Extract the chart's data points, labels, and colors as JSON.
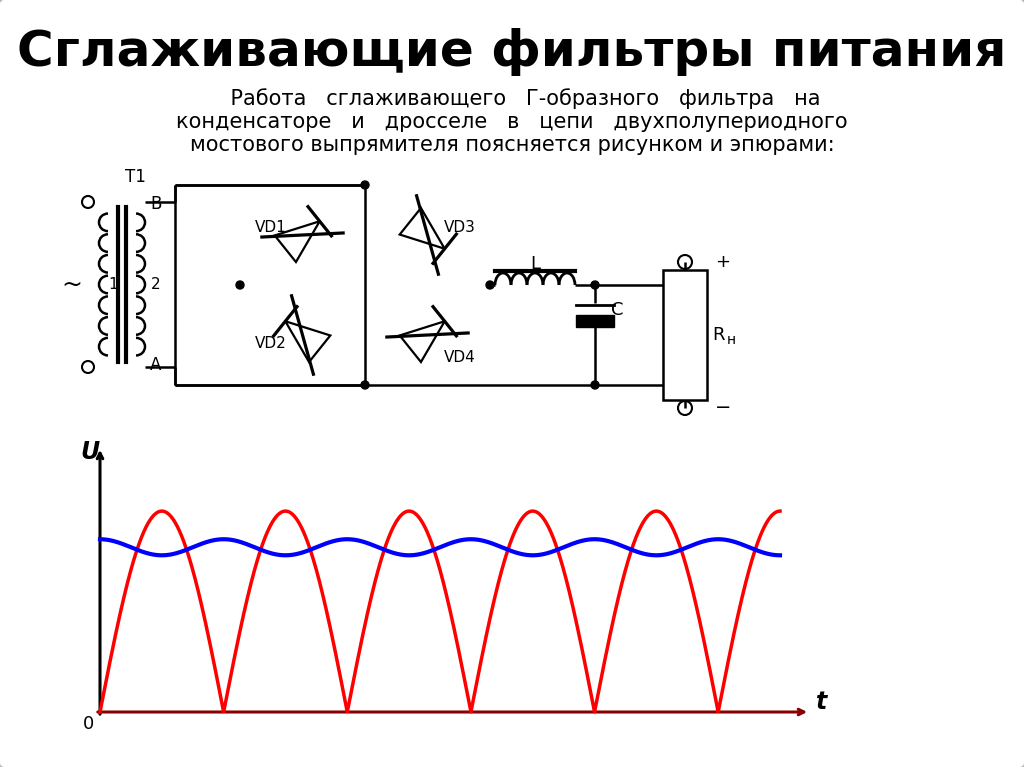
{
  "title": "Сглаживающие фильтры питания",
  "sub1": "    Работа   сглаживающего   Г-образного   фильтра   на",
  "sub2": "конденсаторе   и   дросселе   в   цепи   двухполупериодного",
  "sub3": "мостового выпрямителя поясняется рисунком и эпюрами:",
  "bg_color": "#ffffff",
  "border_color": "#bbbbbb",
  "lw_circuit": 1.8,
  "lw_thick": 2.8
}
